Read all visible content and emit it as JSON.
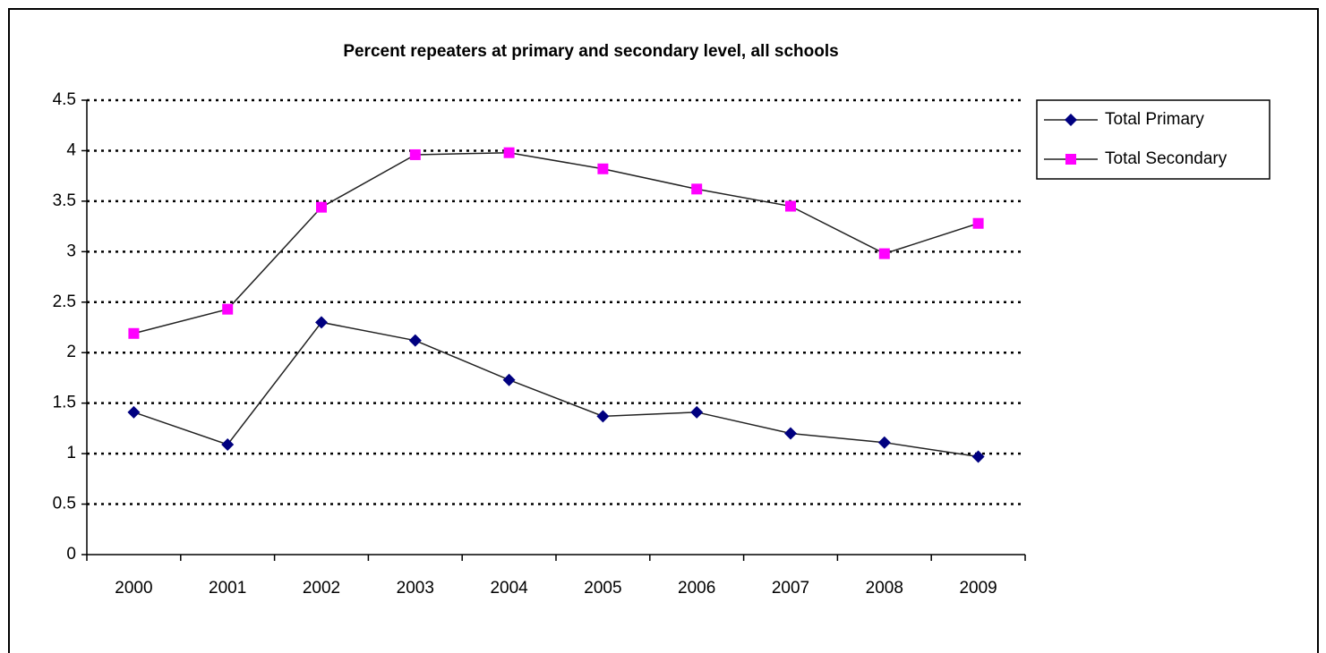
{
  "chart_data": {
    "type": "line",
    "title": "Percent repeaters at primary and secondary level, all schools",
    "categories": [
      "2000",
      "2001",
      "2002",
      "2003",
      "2004",
      "2005",
      "2006",
      "2007",
      "2008",
      "2009"
    ],
    "series": [
      {
        "name": "Total Primary",
        "color": "#000080",
        "marker": "diamond",
        "values": [
          1.41,
          1.09,
          2.3,
          2.12,
          1.73,
          1.37,
          1.41,
          1.2,
          1.11,
          0.97
        ]
      },
      {
        "name": "Total Secondary",
        "color": "#ff00ff",
        "marker": "square",
        "values": [
          2.19,
          2.43,
          3.44,
          3.96,
          3.98,
          3.82,
          3.62,
          3.45,
          2.98,
          3.28
        ]
      }
    ],
    "ylim": [
      0,
      4.5
    ],
    "yticks": [
      0,
      0.5,
      1,
      1.5,
      2,
      2.5,
      3,
      3.5,
      4,
      4.5
    ],
    "grid": true,
    "legend": "right"
  }
}
